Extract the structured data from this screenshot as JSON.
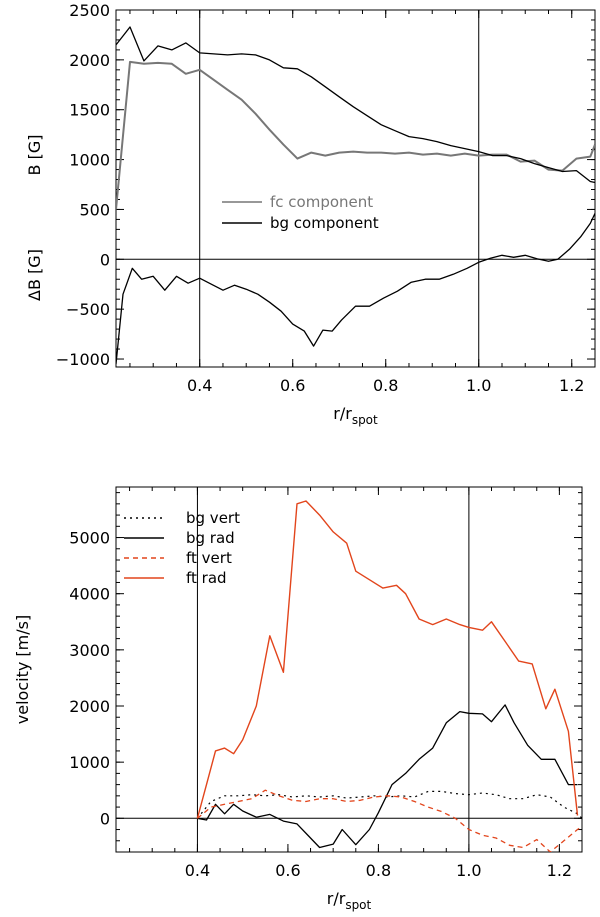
{
  "colors": {
    "gray": "#777777",
    "black": "#000000",
    "red": "#e2451c"
  },
  "chart_data": [
    {
      "type": "line",
      "xlim": [
        0.22,
        1.25
      ],
      "ylim": [
        -1080,
        2500
      ],
      "xticks": [
        "0.4",
        "0.6",
        "0.8",
        "1.0",
        "1.2"
      ],
      "xtick_values": [
        0.4,
        0.6,
        0.8,
        1.0,
        1.2
      ],
      "yticks": [
        "2500",
        "2000",
        "1500",
        "1000",
        "500",
        "0",
        "−500",
        "−1000"
      ],
      "ytick_values": [
        2500,
        2000,
        1500,
        1000,
        500,
        0,
        -500,
        -1000
      ],
      "xlabel": {
        "main": "r/r",
        "sub": "spot"
      },
      "ylabel_top": "B [G]",
      "ylabel_bottom": "ΔB [G]",
      "vlines": [
        0.4,
        1.0
      ],
      "hlines": [
        0
      ],
      "legend": [
        {
          "label": "fc component",
          "color": "#777777",
          "dash": "none"
        },
        {
          "label": "bg component",
          "color": "#000000",
          "dash": "none"
        }
      ],
      "series": [
        {
          "name": "fc component",
          "color": "#777777",
          "width": 2,
          "dash": "none",
          "x": [
            0.22,
            0.25,
            0.28,
            0.31,
            0.34,
            0.37,
            0.4,
            0.43,
            0.46,
            0.49,
            0.52,
            0.55,
            0.58,
            0.61,
            0.64,
            0.67,
            0.7,
            0.73,
            0.76,
            0.79,
            0.82,
            0.85,
            0.88,
            0.91,
            0.94,
            0.97,
            1.0,
            1.03,
            1.06,
            1.09,
            1.12,
            1.15,
            1.18,
            1.21,
            1.24,
            1.25
          ],
          "y": [
            500,
            1980,
            1960,
            1970,
            1960,
            1860,
            1900,
            1800,
            1700,
            1600,
            1460,
            1300,
            1150,
            1010,
            1070,
            1040,
            1070,
            1080,
            1070,
            1070,
            1060,
            1070,
            1050,
            1060,
            1040,
            1060,
            1040,
            1050,
            1050,
            980,
            990,
            900,
            890,
            1010,
            1030,
            1150
          ]
        },
        {
          "name": "bg component",
          "color": "#000000",
          "width": 1.3,
          "dash": "none",
          "x": [
            0.22,
            0.25,
            0.28,
            0.31,
            0.34,
            0.37,
            0.4,
            0.43,
            0.46,
            0.49,
            0.52,
            0.55,
            0.58,
            0.61,
            0.64,
            0.67,
            0.7,
            0.73,
            0.76,
            0.79,
            0.82,
            0.85,
            0.88,
            0.91,
            0.94,
            0.97,
            1.0,
            1.03,
            1.06,
            1.09,
            1.12,
            1.15,
            1.18,
            1.21,
            1.24,
            1.25
          ],
          "y": [
            2150,
            2330,
            1990,
            2140,
            2100,
            2170,
            2070,
            2060,
            2050,
            2060,
            2050,
            2000,
            1920,
            1910,
            1830,
            1730,
            1630,
            1530,
            1440,
            1350,
            1290,
            1230,
            1210,
            1180,
            1140,
            1110,
            1080,
            1040,
            1040,
            1010,
            960,
            920,
            880,
            890,
            780,
            770
          ]
        },
        {
          "name": "delta B",
          "color": "#000000",
          "width": 1.3,
          "dash": "none",
          "x": [
            0.22,
            0.235,
            0.255,
            0.275,
            0.3,
            0.325,
            0.35,
            0.375,
            0.4,
            0.425,
            0.45,
            0.475,
            0.5,
            0.525,
            0.55,
            0.575,
            0.6,
            0.625,
            0.645,
            0.665,
            0.685,
            0.705,
            0.735,
            0.765,
            0.795,
            0.825,
            0.855,
            0.885,
            0.915,
            0.945,
            0.975,
            1.0,
            1.025,
            1.05,
            1.075,
            1.1,
            1.125,
            1.15,
            1.17,
            1.195,
            1.22,
            1.24,
            1.25
          ],
          "y": [
            -1050,
            -350,
            -90,
            -200,
            -170,
            -310,
            -170,
            -240,
            -190,
            -250,
            -310,
            -260,
            -300,
            -350,
            -430,
            -520,
            -650,
            -720,
            -870,
            -710,
            -720,
            -610,
            -470,
            -470,
            -390,
            -320,
            -230,
            -200,
            -200,
            -150,
            -90,
            -30,
            10,
            40,
            20,
            40,
            5,
            -20,
            0,
            100,
            230,
            360,
            460
          ]
        }
      ]
    },
    {
      "type": "line",
      "xlim": [
        0.22,
        1.25
      ],
      "ylim": [
        -600,
        5900
      ],
      "xticks": [
        "0.4",
        "0.6",
        "0.8",
        "1.0",
        "1.2"
      ],
      "xtick_values": [
        0.4,
        0.6,
        0.8,
        1.0,
        1.2
      ],
      "yticks": [
        "0",
        "1000",
        "2000",
        "3000",
        "4000",
        "5000"
      ],
      "ytick_values": [
        0,
        1000,
        2000,
        3000,
        4000,
        5000
      ],
      "xlabel": {
        "main": "r/r",
        "sub": "spot"
      },
      "ylabel": "velocity [m/s]",
      "vlines": [
        0.4,
        1.0
      ],
      "hlines": [
        0
      ],
      "legend": [
        {
          "label": "bg vert",
          "color": "#000000",
          "dash": "2,4"
        },
        {
          "label": "bg rad",
          "color": "#000000",
          "dash": "none"
        },
        {
          "label": "ft vert",
          "color": "#e2451c",
          "dash": "5,4"
        },
        {
          "label": "ft rad",
          "color": "#e2451c",
          "dash": "none"
        }
      ],
      "series": [
        {
          "name": "bg vert",
          "color": "#000000",
          "width": 1.2,
          "dash": "2,4",
          "x": [
            0.4,
            0.43,
            0.46,
            0.49,
            0.52,
            0.55,
            0.58,
            0.61,
            0.64,
            0.67,
            0.7,
            0.73,
            0.76,
            0.79,
            0.82,
            0.85,
            0.88,
            0.91,
            0.94,
            0.97,
            1.0,
            1.03,
            1.06,
            1.09,
            1.12,
            1.15,
            1.18,
            1.21,
            1.24,
            1.25
          ],
          "y": [
            0,
            300,
            400,
            400,
            420,
            400,
            420,
            380,
            400,
            380,
            400,
            360,
            380,
            400,
            380,
            400,
            380,
            480,
            480,
            440,
            420,
            450,
            420,
            350,
            350,
            420,
            380,
            200,
            80,
            0
          ]
        },
        {
          "name": "bg rad",
          "color": "#000000",
          "width": 1.3,
          "dash": "none",
          "x": [
            0.4,
            0.42,
            0.44,
            0.46,
            0.48,
            0.5,
            0.53,
            0.56,
            0.59,
            0.62,
            0.65,
            0.67,
            0.7,
            0.72,
            0.75,
            0.78,
            0.8,
            0.83,
            0.86,
            0.89,
            0.92,
            0.95,
            0.98,
            1.0,
            1.03,
            1.05,
            1.08,
            1.1,
            1.13,
            1.16,
            1.19,
            1.22,
            1.24
          ],
          "y": [
            0,
            -30,
            250,
            80,
            250,
            130,
            20,
            70,
            -50,
            -100,
            -350,
            -520,
            -460,
            -200,
            -470,
            -200,
            100,
            600,
            800,
            1050,
            1250,
            1700,
            1900,
            1870,
            1860,
            1720,
            2020,
            1700,
            1300,
            1050,
            1050,
            600,
            600
          ]
        },
        {
          "name": "ft vert",
          "color": "#e2451c",
          "width": 1.3,
          "dash": "5,4",
          "x": [
            0.4,
            0.43,
            0.46,
            0.49,
            0.52,
            0.55,
            0.58,
            0.61,
            0.64,
            0.67,
            0.7,
            0.73,
            0.76,
            0.79,
            0.82,
            0.85,
            0.88,
            0.91,
            0.94,
            0.97,
            1.0,
            1.03,
            1.06,
            1.09,
            1.12,
            1.15,
            1.18,
            1.21,
            1.24,
            1.25
          ],
          "y": [
            0,
            200,
            250,
            300,
            350,
            500,
            400,
            320,
            300,
            350,
            350,
            300,
            320,
            380,
            400,
            380,
            300,
            200,
            120,
            0,
            -200,
            -300,
            -350,
            -480,
            -520,
            -380,
            -600,
            -400,
            -200,
            -150
          ]
        },
        {
          "name": "ft rad",
          "color": "#e2451c",
          "width": 1.4,
          "dash": "none",
          "x": [
            0.4,
            0.42,
            0.44,
            0.46,
            0.48,
            0.5,
            0.53,
            0.56,
            0.59,
            0.62,
            0.64,
            0.67,
            0.7,
            0.73,
            0.75,
            0.78,
            0.81,
            0.84,
            0.86,
            0.89,
            0.92,
            0.95,
            0.98,
            1.0,
            1.03,
            1.05,
            1.08,
            1.11,
            1.14,
            1.17,
            1.19,
            1.22,
            1.24
          ],
          "y": [
            0,
            600,
            1200,
            1250,
            1150,
            1400,
            2000,
            3250,
            2600,
            5600,
            5650,
            5400,
            5100,
            4900,
            4400,
            4250,
            4100,
            4150,
            4000,
            3550,
            3450,
            3550,
            3450,
            3400,
            3350,
            3500,
            3150,
            2800,
            2750,
            1950,
            2300,
            1550,
            50
          ]
        }
      ]
    }
  ]
}
